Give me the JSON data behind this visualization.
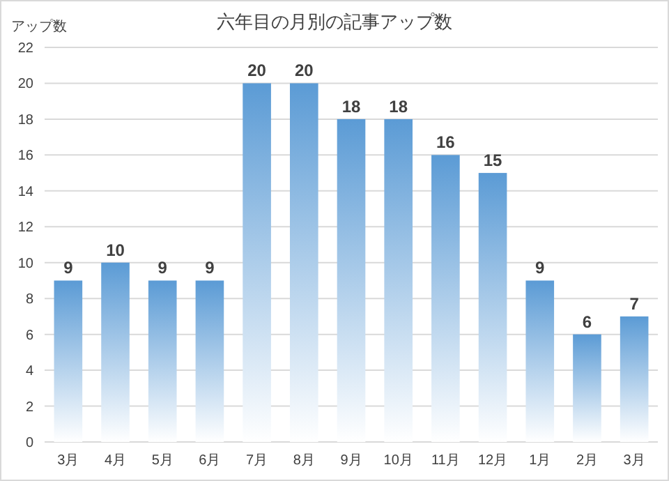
{
  "chart_data": {
    "type": "bar",
    "title": "六年目の月別の記事アップ数",
    "ylabel": "アップ数",
    "categories": [
      "3月",
      "4月",
      "5月",
      "6月",
      "7月",
      "8月",
      "9月",
      "10月",
      "11月",
      "12月",
      "1月",
      "2月",
      "3月"
    ],
    "values": [
      9,
      10,
      9,
      9,
      20,
      20,
      18,
      18,
      16,
      15,
      9,
      6,
      7
    ],
    "color": "#5b9bd5",
    "ylim": [
      0,
      22
    ],
    "yticks": [
      0,
      2,
      4,
      6,
      8,
      10,
      12,
      14,
      16,
      18,
      20,
      22
    ],
    "grid": "y",
    "data_labels": true
  }
}
